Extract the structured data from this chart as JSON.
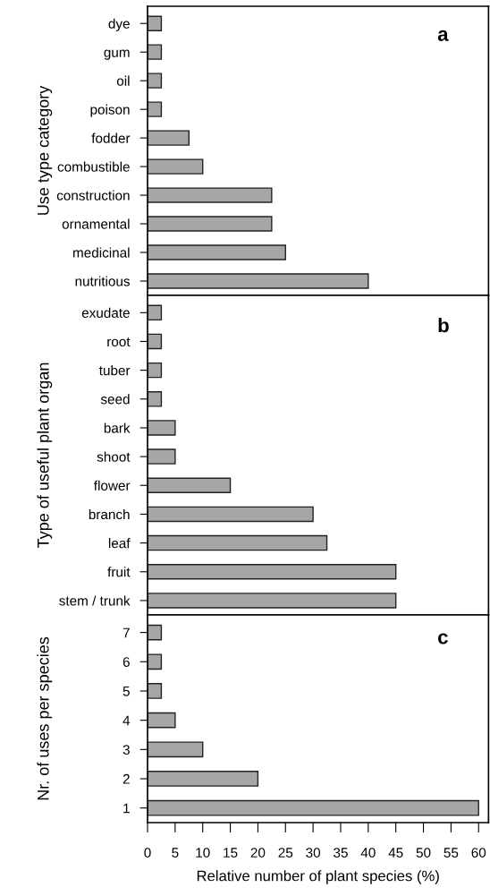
{
  "chart_data": [
    {
      "type": "bar",
      "orientation": "horizontal",
      "ylabel": "Use type category",
      "annotations": [
        "a"
      ],
      "categories": [
        "dye",
        "gum",
        "oil",
        "poison",
        "fodder",
        "combustible",
        "construction",
        "ornamental",
        "medicinal",
        "nutritious"
      ],
      "values": [
        2.5,
        2.5,
        2.5,
        2.5,
        7.5,
        10,
        22.5,
        22.5,
        25,
        40
      ],
      "color": "#a6a6a6",
      "xlim": [
        0,
        61.8
      ],
      "tick_labels": "y",
      "grid": false,
      "legend": false
    },
    {
      "type": "bar",
      "orientation": "horizontal",
      "ylabel": "Type of useful plant organ",
      "annotations": [
        "b"
      ],
      "categories": [
        "exudate",
        "root",
        "tuber",
        "seed",
        "bark",
        "shoot",
        "flower",
        "branch",
        "leaf",
        "fruit",
        "stem / trunk"
      ],
      "values": [
        2.5,
        2.5,
        2.5,
        2.5,
        5,
        5,
        15,
        30,
        32.5,
        45,
        45
      ],
      "color": "#a6a6a6",
      "xlim": [
        0,
        61.8
      ],
      "tick_labels": "y",
      "grid": false,
      "legend": false
    },
    {
      "type": "bar",
      "orientation": "horizontal",
      "ylabel": "Nr. of uses per species",
      "xlabel": "Relative number of plant species (%)",
      "annotations": [
        "c"
      ],
      "categories": [
        "7",
        "6",
        "5",
        "4",
        "3",
        "2",
        "1"
      ],
      "values": [
        2.5,
        2.5,
        2.5,
        5,
        10,
        20,
        60
      ],
      "color": "#a6a6a6",
      "xlim": [
        0,
        61.8
      ],
      "xticks": [
        0,
        5,
        10,
        15,
        20,
        25,
        30,
        35,
        40,
        45,
        50,
        55,
        60
      ],
      "grid": false,
      "legend": false
    }
  ]
}
